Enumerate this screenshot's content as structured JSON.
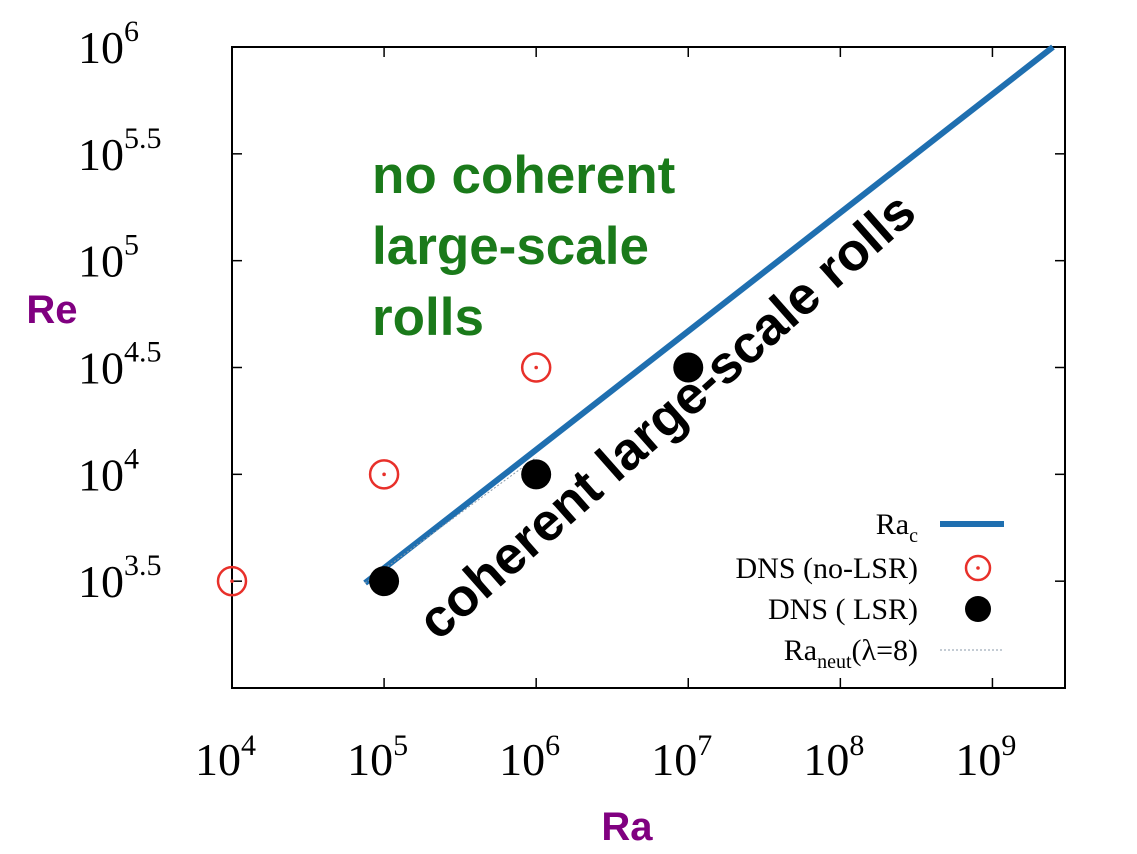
{
  "chart_data": {
    "type": "scatter",
    "x_scale": "log",
    "y_scale": "log",
    "xlabel": "Ra",
    "ylabel": "Re",
    "xlim": [
      10000,
      3000000000
    ],
    "ylim": [
      1000,
      1000000
    ],
    "x_ticks": [
      {
        "base": "10",
        "exp": "4",
        "value": 10000
      },
      {
        "base": "10",
        "exp": "5",
        "value": 100000
      },
      {
        "base": "10",
        "exp": "6",
        "value": 1000000
      },
      {
        "base": "10",
        "exp": "7",
        "value": 10000000
      },
      {
        "base": "10",
        "exp": "8",
        "value": 100000000
      },
      {
        "base": "10",
        "exp": "9",
        "value": 1000000000
      }
    ],
    "y_ticks": [
      {
        "base": "10",
        "exp": "3.5",
        "value": 3162
      },
      {
        "base": "10",
        "exp": "4",
        "value": 10000
      },
      {
        "base": "10",
        "exp": "4.5",
        "value": 31623
      },
      {
        "base": "10",
        "exp": "5",
        "value": 100000
      },
      {
        "base": "10",
        "exp": "5.5",
        "value": 316228
      },
      {
        "base": "10",
        "exp": "6",
        "value": 1000000
      }
    ],
    "series": [
      {
        "name": "Ra_c",
        "kind": "line",
        "color": "#1f6fb0",
        "points": [
          [
            75000,
            3100
          ],
          [
            2500000000,
            1000000
          ]
        ]
      },
      {
        "name": "DNS (no-LSR)",
        "kind": "open-circle",
        "color": "#e8302a",
        "points": [
          [
            10000,
            3162
          ],
          [
            100000,
            10000
          ],
          [
            1000000,
            31623
          ]
        ]
      },
      {
        "name": "DNS ( LSR)",
        "kind": "filled-circle",
        "color": "#000000",
        "points": [
          [
            100000,
            3162
          ],
          [
            1000000,
            10000
          ],
          [
            10000000,
            31623
          ]
        ]
      },
      {
        "name": "Ra_neut(λ=8)",
        "kind": "dotted-line",
        "color": "#8a9aa8",
        "points": [
          [
            75000,
            3100
          ],
          [
            1000000,
            12000
          ]
        ]
      }
    ],
    "legend": {
      "position": "bottom-right",
      "entries": [
        {
          "text": "Ra",
          "sub": "c",
          "after": ""
        },
        {
          "text": "DNS (no-LSR)",
          "sub": "",
          "after": ""
        },
        {
          "text": "DNS ( LSR)",
          "sub": "",
          "after": ""
        },
        {
          "text": "Ra",
          "sub": "neut",
          "after": "(λ=8)"
        }
      ]
    },
    "annotations": {
      "upper_region": [
        "no coherent",
        "large-scale",
        "rolls"
      ],
      "lower_region": "coherent large-scale rolls"
    },
    "grid": false
  }
}
